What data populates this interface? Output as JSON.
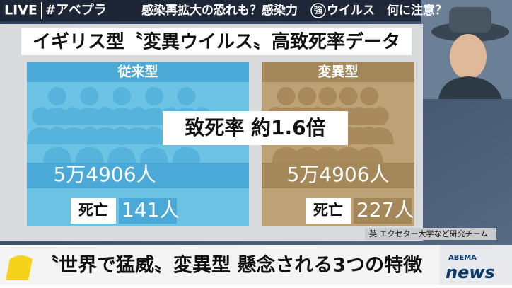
{
  "header": {
    "live": "LIVE",
    "tag": "#アベプラ",
    "ticker": [
      "感染再拡大の恐れも？感染力",
      "強",
      "ウイルス　何に注意？"
    ]
  },
  "board": {
    "title": "イギリス型〝変異ウイルス〟高致死率データ",
    "panels": [
      {
        "label": "従来型",
        "total": "5万4906人",
        "death_label": "死亡",
        "deaths": "141人"
      },
      {
        "label": "変異型",
        "total": "5万4906人",
        "death_label": "死亡",
        "deaths": "227人"
      }
    ],
    "overlay": "致死率 約1.6倍",
    "source": "英 エクセター大学など研究チーム"
  },
  "lower_third": {
    "headline": "〝世界で猛威〟変異型 懸念される3つの特徴"
  },
  "logo": {
    "brand": "ABEMA",
    "name": "news"
  }
}
